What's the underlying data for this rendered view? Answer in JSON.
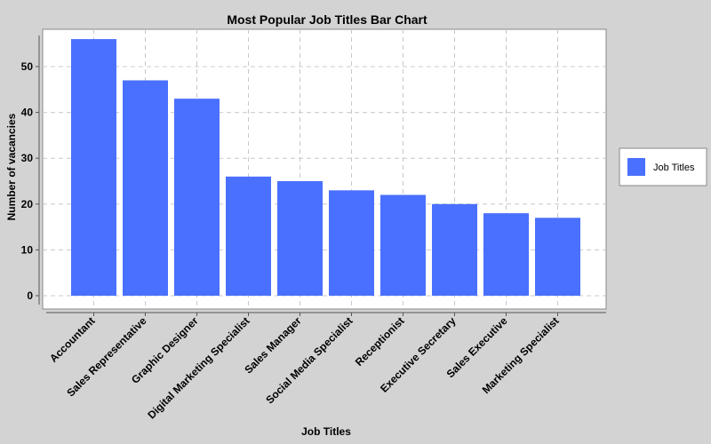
{
  "chart_data": {
    "type": "bar",
    "title": "Most Popular Job Titles Bar Chart",
    "xlabel": "Job Titles",
    "ylabel": "Number of vacancies",
    "categories": [
      "Accountant",
      "Sales Representative",
      "Graphic Designer",
      "Digital Marketing Specialist",
      "Sales Manager",
      "Social Media Specialist",
      "Receptionist",
      "Executive Secretary",
      "Sales Executive",
      "Marketing Specialist"
    ],
    "series": [
      {
        "name": "Job Titles",
        "values": [
          56,
          47,
          43,
          26,
          25,
          23,
          22,
          20,
          18,
          17
        ],
        "color": "#4a70ff"
      }
    ],
    "yticks": [
      0,
      10,
      20,
      30,
      40,
      50
    ],
    "ylim": [
      -2,
      58
    ],
    "grid": true,
    "legend_position": "right"
  }
}
